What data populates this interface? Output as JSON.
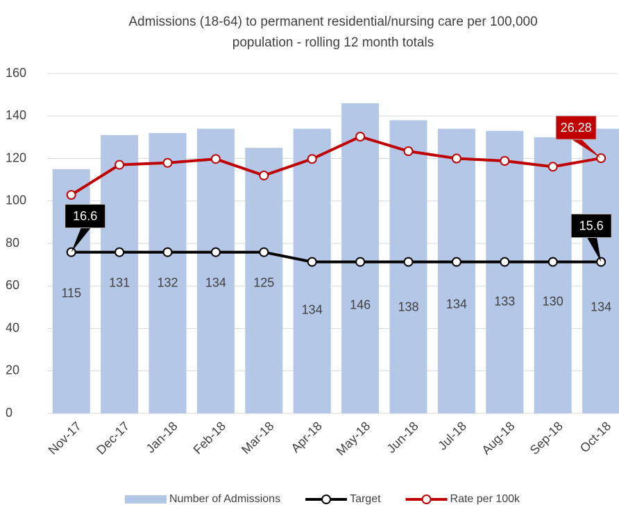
{
  "chart_data": {
    "type": "bar-line",
    "title": "Admissions (18-64) to permanent residential/nursing care per 100,000 population - rolling 12 month totals",
    "categories": [
      "Nov-17",
      "Dec-17",
      "Jan-18",
      "Feb-18",
      "Mar-18",
      "Apr-18",
      "May-18",
      "Jun-18",
      "Jul-18",
      "Aug-18",
      "Sep-18",
      "Oct-18"
    ],
    "series": [
      {
        "name": "Number of Admissions",
        "color": "#b4c7e7",
        "kind": "bar",
        "values": [
          115,
          131,
          132,
          134,
          125,
          134,
          146,
          138,
          134,
          133,
          130,
          134
        ]
      },
      {
        "name": "Target",
        "color": "#000000",
        "kind": "line",
        "axis": "y2",
        "values": [
          16.6,
          16.6,
          16.6,
          16.6,
          16.6,
          15.6,
          15.6,
          15.6,
          15.6,
          15.6,
          15.6,
          15.6
        ]
      },
      {
        "name": "Rate per 100k",
        "color": "#c00000",
        "kind": "line",
        "axis": "y2",
        "values": [
          22.5,
          25.6,
          25.8,
          26.2,
          24.5,
          26.2,
          28.5,
          27.0,
          26.25,
          26.0,
          25.4,
          26.28
        ]
      }
    ],
    "ylim": [
      0,
      160
    ],
    "yticks": [
      0,
      20,
      40,
      60,
      80,
      100,
      120,
      140,
      160
    ],
    "y2lim": [
      0,
      35
    ],
    "grid": true,
    "legend": "bottom"
  }
}
